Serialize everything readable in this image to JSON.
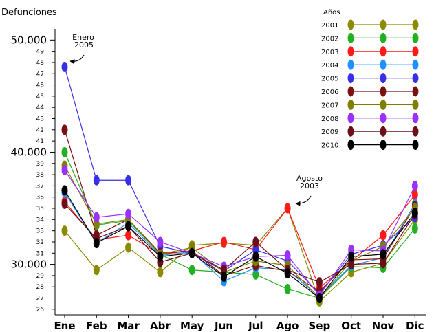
{
  "chart_data": {
    "type": "line",
    "ylabel": "Defunciones",
    "ylim": [
      25500,
      51000
    ],
    "major_ticks": [
      {
        "value": 30000,
        "label": "30.000"
      },
      {
        "value": 40000,
        "label": "40.000"
      },
      {
        "value": 50000,
        "label": "50.000"
      }
    ],
    "minor_ticks": [
      {
        "value": 26000,
        "label": "26"
      },
      {
        "value": 27000,
        "label": "27"
      },
      {
        "value": 28000,
        "label": "28"
      },
      {
        "value": 29000,
        "label": "29"
      },
      {
        "value": 31000,
        "label": "31"
      },
      {
        "value": 32000,
        "label": "32"
      },
      {
        "value": 33000,
        "label": "33"
      },
      {
        "value": 34000,
        "label": "34"
      },
      {
        "value": 35000,
        "label": "35"
      },
      {
        "value": 36000,
        "label": "36"
      },
      {
        "value": 37000,
        "label": "37"
      },
      {
        "value": 38000,
        "label": "38"
      },
      {
        "value": 39000,
        "label": "39"
      },
      {
        "value": 41000,
        "label": "41"
      },
      {
        "value": 42000,
        "label": "42"
      },
      {
        "value": 43000,
        "label": "43"
      },
      {
        "value": 44000,
        "label": "44"
      },
      {
        "value": 45000,
        "label": "45"
      },
      {
        "value": 46000,
        "label": "46"
      },
      {
        "value": 47000,
        "label": "47"
      },
      {
        "value": 48000,
        "label": "48"
      },
      {
        "value": 49000,
        "label": "49"
      }
    ],
    "categories": [
      "Ene",
      "Feb",
      "Mar",
      "Abr",
      "May",
      "Jun",
      "Jul",
      "Ago",
      "Sep",
      "Oct",
      "Nov",
      "Dic"
    ],
    "legend_title": "Años",
    "legend_position": "top-right",
    "grid": false,
    "series": [
      {
        "name": "2001",
        "color": "#8b8b00",
        "values": [
          33000,
          29500,
          31500,
          29300,
          31700,
          31900,
          31700,
          35000,
          26700,
          29300,
          30100,
          34000
        ]
      },
      {
        "name": "2002",
        "color": "#22b022",
        "values": [
          40000,
          33500,
          33900,
          30900,
          29500,
          29300,
          29100,
          27800,
          27000,
          29800,
          29700,
          33200
        ]
      },
      {
        "name": "2003",
        "color": "#ff1a1a",
        "values": [
          35600,
          32200,
          32600,
          30900,
          31200,
          32000,
          31300,
          35000,
          27900,
          30300,
          32600,
          36200
        ]
      },
      {
        "name": "2004",
        "color": "#1e90ff",
        "values": [
          36400,
          31900,
          33700,
          30800,
          31100,
          28500,
          29700,
          29500,
          27100,
          29900,
          30600,
          35400
        ]
      },
      {
        "name": "2005",
        "color": "#3a2fe8",
        "values": [
          47600,
          37500,
          37500,
          31600,
          31000,
          29400,
          31300,
          30300,
          27400,
          30900,
          31700,
          34200
        ]
      },
      {
        "name": "2006",
        "color": "#7a1010",
        "values": [
          42000,
          32600,
          34000,
          31000,
          31200,
          29000,
          29900,
          29400,
          27600,
          30400,
          30500,
          35200
        ]
      },
      {
        "name": "2007",
        "color": "#808000",
        "values": [
          38800,
          33600,
          34000,
          30900,
          31500,
          29300,
          30300,
          29900,
          27000,
          30300,
          31600,
          35000
        ]
      },
      {
        "name": "2008",
        "color": "#9b30ff",
        "values": [
          38400,
          34200,
          34500,
          32000,
          31000,
          29800,
          30700,
          30800,
          27200,
          31300,
          31200,
          37000
        ]
      },
      {
        "name": "2009",
        "color": "#6b0f1a",
        "values": [
          35400,
          32300,
          33400,
          30200,
          31000,
          29500,
          32000,
          29500,
          28400,
          30000,
          30100,
          34500
        ]
      },
      {
        "name": "2010",
        "color": "#000000",
        "values": [
          36600,
          31900,
          33400,
          30700,
          31000,
          28900,
          30700,
          29200,
          27000,
          30700,
          30900,
          34600
        ]
      }
    ],
    "annotations": [
      {
        "lines": [
          "Enero",
          "2005"
        ],
        "series": "2005",
        "category": "Ene"
      },
      {
        "lines": [
          "Agosto",
          "2003"
        ],
        "series": "2003",
        "category": "Ago"
      }
    ]
  }
}
